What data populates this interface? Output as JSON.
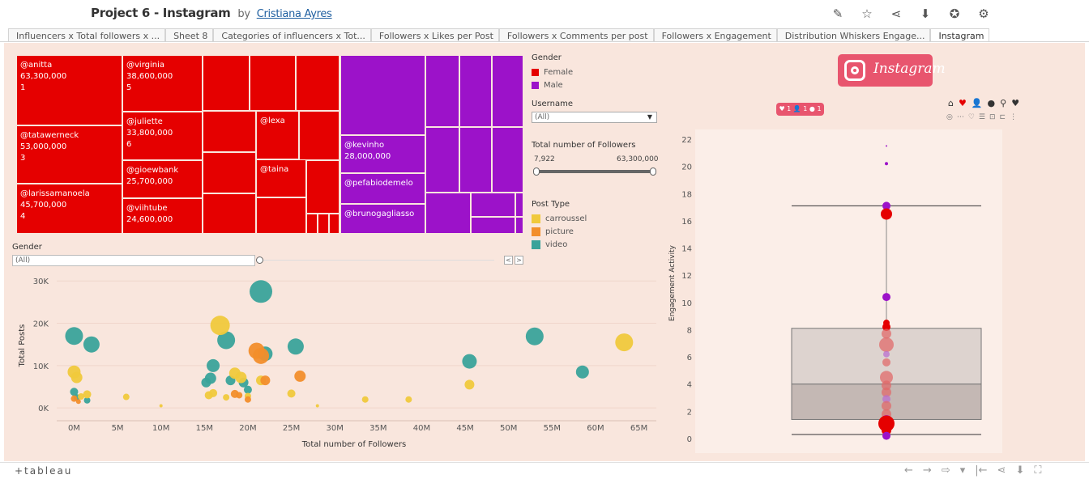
{
  "header": {
    "title": "Project 6 - Instagram",
    "by": "by",
    "author": "Cristiana Ayres"
  },
  "toolbar_icons": [
    "edit-icon",
    "star-icon",
    "share-icon",
    "download-icon",
    "badge-icon",
    "gear-icon"
  ],
  "tabs": [
    {
      "label": "Influencers x Total followers x ..."
    },
    {
      "label": "Sheet 8"
    },
    {
      "label": "Categories of influencers x Tot..."
    },
    {
      "label": "Followers x Likes per Post"
    },
    {
      "label": "Followers x Comments per post"
    },
    {
      "label": "Followers x Engagement"
    },
    {
      "label": "Distribution Whiskers Engage..."
    },
    {
      "label": "Instagram"
    }
  ],
  "active_tab": "Instagram",
  "filters": {
    "gender_legend_title": "Gender",
    "gender_items": [
      {
        "label": "Female",
        "color": "#e50000"
      },
      {
        "label": "Male",
        "color": "#9c12c9"
      }
    ],
    "username_title": "Username",
    "username_value": "(All)",
    "followers_title": "Total number of Followers",
    "followers_min": "7,922",
    "followers_max": "63,300,000",
    "post_type_title": "Post Type",
    "post_type_items": [
      {
        "label": "carroussel",
        "color": "#f0c93c"
      },
      {
        "label": "picture",
        "color": "#f28e2b"
      },
      {
        "label": "video",
        "color": "#3aa39a"
      }
    ],
    "gender_filter_title": "Gender",
    "gender_filter_value": "(All)"
  },
  "instagram_brand": {
    "text": "Instagram"
  },
  "footer": {
    "brand": "+tableau"
  },
  "chart_data": [
    {
      "type": "treemap",
      "cells": [
        {
          "name": "@anitta",
          "value": "63,300,000",
          "rank": "1",
          "gender": "Female"
        },
        {
          "name": "@tatawerneck",
          "value": "53,000,000",
          "rank": "3",
          "gender": "Female"
        },
        {
          "name": "@larissamanoela",
          "value": "45,700,000",
          "rank": "4",
          "gender": "Female"
        },
        {
          "name": "@virginia",
          "value": "38,600,000",
          "rank": "5",
          "gender": "Female"
        },
        {
          "name": "@juliette",
          "value": "33,800,000",
          "rank": "6",
          "gender": "Female"
        },
        {
          "name": "@gioewbank",
          "value": "25,700,000",
          "rank": "",
          "gender": "Female"
        },
        {
          "name": "@viihtube",
          "value": "24,600,000",
          "rank": "",
          "gender": "Female"
        },
        {
          "name": "@lexa",
          "value": "",
          "rank": "",
          "gender": "Female"
        },
        {
          "name": "@taina",
          "value": "",
          "rank": "",
          "gender": "Female"
        },
        {
          "name": "@kevinho",
          "value": "28,000,000",
          "rank": "",
          "gender": "Male"
        },
        {
          "name": "@pefabiodemelo",
          "value": "",
          "rank": "",
          "gender": "Male"
        },
        {
          "name": "@brunogagliasso",
          "value": "",
          "rank": "",
          "gender": "Male"
        }
      ]
    },
    {
      "type": "scatter",
      "xlabel": "Total number of Followers",
      "ylabel": "Total Posts",
      "xlim": [
        -2000000,
        67000000
      ],
      "ylim": [
        -1500000,
        31000
      ],
      "x_ticks": [
        "0M",
        "5M",
        "10M",
        "15M",
        "20M",
        "25M",
        "30M",
        "35M",
        "40M",
        "45M",
        "50M",
        "55M",
        "60M",
        "65M"
      ],
      "y_ticks": [
        "0K",
        "10K",
        "20K",
        "30K"
      ],
      "series": [
        {
          "name": "video",
          "color": "#3aa39a",
          "points": [
            [
              0.0,
              17000,
              11
            ],
            [
              2.0,
              15000,
              10
            ],
            [
              21.5,
              27500,
              14
            ],
            [
              17.5,
              16000,
              11
            ],
            [
              25.5,
              14500,
              10
            ],
            [
              45.5,
              11000,
              9
            ],
            [
              53.0,
              16900,
              11
            ],
            [
              58.5,
              8500,
              8
            ],
            [
              16.0,
              10000,
              8
            ],
            [
              22.0,
              12800,
              9
            ],
            [
              15.2,
              6000,
              6
            ],
            [
              15.7,
              7000,
              7
            ],
            [
              18.0,
              6500,
              6
            ],
            [
              19.5,
              6000,
              6
            ],
            [
              20.0,
              4300,
              5
            ],
            [
              0.0,
              3800,
              5
            ],
            [
              1.5,
              1800,
              4
            ],
            [
              0.3,
              2500,
              4
            ]
          ]
        },
        {
          "name": "carroussel",
          "color": "#f0c93c",
          "points": [
            [
              16.8,
              19500,
              12
            ],
            [
              63.3,
              15500,
              11
            ],
            [
              0.0,
              8500,
              8
            ],
            [
              0.3,
              7200,
              7
            ],
            [
              18.5,
              8200,
              7
            ],
            [
              19.2,
              7200,
              7
            ],
            [
              21.5,
              6500,
              6
            ],
            [
              15.5,
              3000,
              5
            ],
            [
              16.0,
              3500,
              5
            ],
            [
              17.5,
              2500,
              4
            ],
            [
              20.0,
              2800,
              4
            ],
            [
              25.0,
              3400,
              5
            ],
            [
              6.0,
              2600,
              4
            ],
            [
              45.5,
              5500,
              6
            ],
            [
              33.5,
              2000,
              4
            ],
            [
              38.5,
              2000,
              4
            ],
            [
              1.5,
              3200,
              5
            ],
            [
              0.8,
              2700,
              4
            ],
            [
              10.0,
              500,
              2
            ],
            [
              28.0,
              500,
              2
            ]
          ]
        },
        {
          "name": "picture",
          "color": "#f28e2b",
          "points": [
            [
              21.0,
              13500,
              10
            ],
            [
              21.5,
              12300,
              10
            ],
            [
              26.0,
              7500,
              7
            ],
            [
              22.0,
              6500,
              6
            ],
            [
              18.5,
              3300,
              5
            ],
            [
              19.0,
              3000,
              4
            ],
            [
              20.0,
              2000,
              4
            ],
            [
              0.0,
              2200,
              4
            ],
            [
              0.5,
              1500,
              3
            ]
          ]
        }
      ]
    },
    {
      "type": "box",
      "ylabel": "Engagement Activity",
      "y_ticks": [
        "0",
        "2",
        "4",
        "6",
        "8",
        "10",
        "12",
        "14",
        "16",
        "18",
        "20",
        "22"
      ],
      "ylim": [
        0,
        22
      ],
      "whisker_low": 0.3,
      "q1": 1.4,
      "median": 4.0,
      "q3": 8.1,
      "whisker_high": 17.1,
      "points": [
        {
          "y": 21.5,
          "g": "Male",
          "s": 1
        },
        {
          "y": 20.2,
          "g": "Male",
          "s": 2
        },
        {
          "y": 17.1,
          "g": "Male",
          "s": 5
        },
        {
          "y": 16.5,
          "g": "Female",
          "s": 7
        },
        {
          "y": 10.4,
          "g": "Male",
          "s": 5
        },
        {
          "y": 8.5,
          "g": "Female",
          "s": 4
        },
        {
          "y": 8.2,
          "g": "Female",
          "s": 5
        },
        {
          "y": 7.7,
          "g": "Female",
          "s": 6
        },
        {
          "y": 6.9,
          "g": "Female",
          "s": 9
        },
        {
          "y": 6.2,
          "g": "Male",
          "s": 4
        },
        {
          "y": 5.6,
          "g": "Female",
          "s": 5
        },
        {
          "y": 4.5,
          "g": "Female",
          "s": 8
        },
        {
          "y": 3.9,
          "g": "Female",
          "s": 6
        },
        {
          "y": 3.4,
          "g": "Female",
          "s": 6
        },
        {
          "y": 2.9,
          "g": "Male",
          "s": 5
        },
        {
          "y": 2.4,
          "g": "Female",
          "s": 6
        },
        {
          "y": 1.8,
          "g": "Female",
          "s": 6
        },
        {
          "y": 1.3,
          "g": "Male",
          "s": 7
        },
        {
          "y": 1.1,
          "g": "Female",
          "s": 10
        },
        {
          "y": 0.6,
          "g": "Female",
          "s": 6
        },
        {
          "y": 0.2,
          "g": "Male",
          "s": 5
        }
      ]
    }
  ]
}
